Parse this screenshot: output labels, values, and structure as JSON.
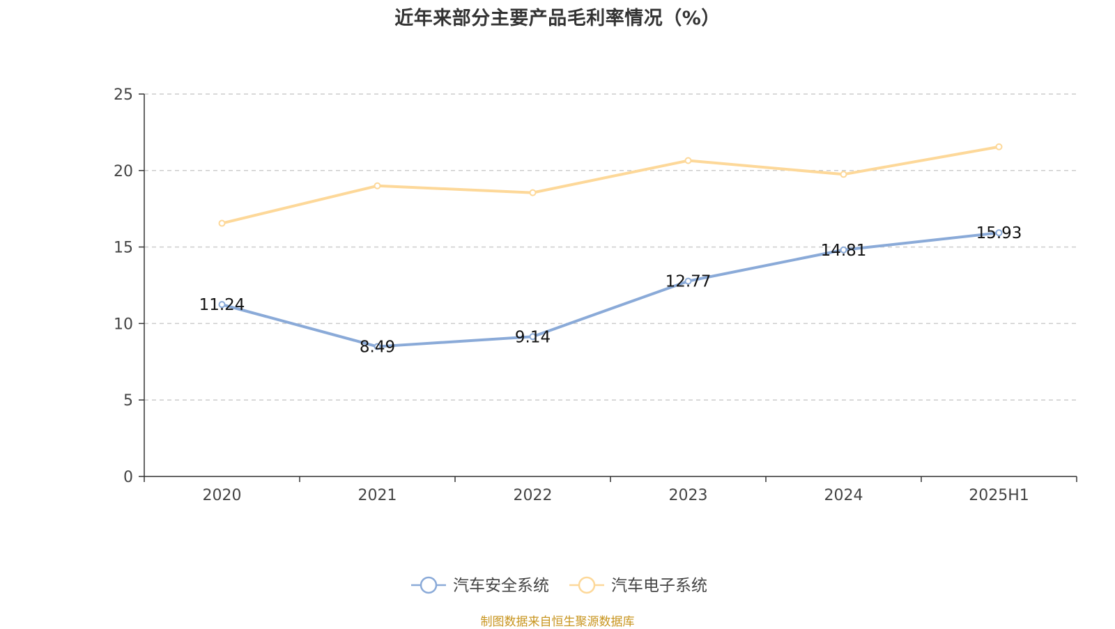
{
  "chart_data": {
    "type": "line",
    "title": "近年来部分主要产品毛利率情况（%）",
    "categories": [
      "2020",
      "2021",
      "2022",
      "2023",
      "2024",
      "2025H1"
    ],
    "ylim": [
      0,
      25
    ],
    "yticks": [
      0,
      5,
      10,
      15,
      20,
      25
    ],
    "grid": true,
    "grid_style": "dashed",
    "legend_position": "bottom",
    "series": [
      {
        "name": "汽车安全系统",
        "color": "#8aaad8",
        "values": [
          11.24,
          8.49,
          9.14,
          12.77,
          14.81,
          15.93
        ],
        "data_labels": [
          "11.24",
          "8.49",
          "9.14",
          "12.77",
          "14.81",
          "15.93"
        ]
      },
      {
        "name": "汽车电子系统",
        "color": "#fdd899",
        "values": [
          16.55,
          19.0,
          18.55,
          20.65,
          19.75,
          21.55
        ],
        "data_labels": []
      }
    ]
  },
  "source_note": "制图数据来自恒生聚源数据库"
}
